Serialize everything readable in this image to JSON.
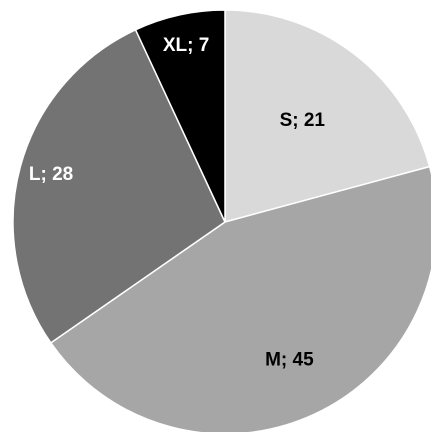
{
  "chart_data": {
    "type": "pie",
    "slices": [
      {
        "label": "S",
        "value": 21,
        "color": "#d9d9d9",
        "text_color": "#000000"
      },
      {
        "label": "M",
        "value": 45,
        "color": "#a6a6a6",
        "text_color": "#000000"
      },
      {
        "label": "L",
        "value": 28,
        "color": "#737373",
        "text_color": "#ffffff"
      },
      {
        "label": "XL",
        "value": 7,
        "color": "#000000",
        "text_color": "#ffffff"
      }
    ],
    "data_labels": [
      "S; 21",
      "M; 45",
      "L; 28",
      "XL; 7"
    ],
    "start": "12 o'clock",
    "direction": "clockwise"
  }
}
